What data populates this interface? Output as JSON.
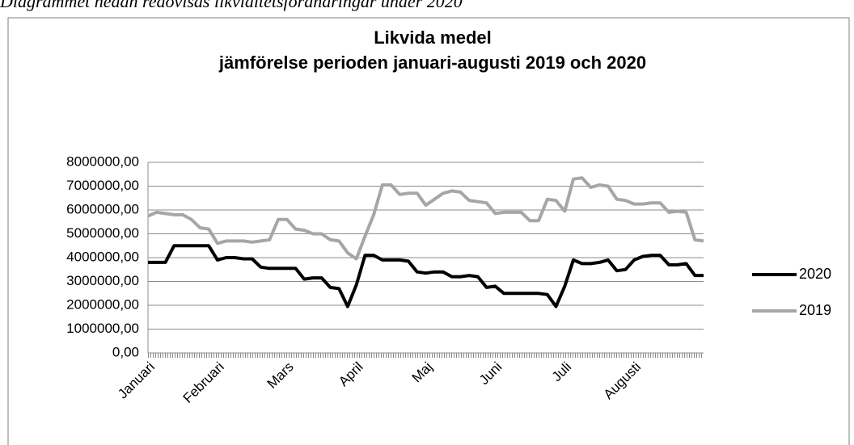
{
  "caption": "Diagrammet nedan redovisas likviditetsförändringar under 2020",
  "chart_data": {
    "type": "line",
    "title": "Likvida medel",
    "subtitle": "jämförelse perioden januari-augusti 2019 och 2020",
    "categories": [
      "Januari",
      null,
      null,
      null,
      null,
      null,
      null,
      null,
      "Februari",
      null,
      null,
      null,
      null,
      null,
      null,
      null,
      "Mars",
      null,
      null,
      null,
      null,
      null,
      null,
      null,
      "April",
      null,
      null,
      null,
      null,
      null,
      null,
      null,
      "Maj",
      null,
      null,
      null,
      null,
      null,
      null,
      null,
      "Juni",
      null,
      null,
      null,
      null,
      null,
      null,
      null,
      "Juli",
      null,
      null,
      null,
      null,
      null,
      null,
      null,
      "Augusti",
      null,
      null,
      null,
      null,
      null,
      null,
      null,
      null
    ],
    "series": [
      {
        "name": "2020",
        "color": "#000000",
        "values": [
          3800000,
          3800000,
          3800000,
          4500000,
          4500000,
          4500000,
          4500000,
          4500000,
          3900000,
          4000000,
          4000000,
          3950000,
          3950000,
          3600000,
          3550000,
          3550000,
          3550000,
          3550000,
          3100000,
          3150000,
          3150000,
          2750000,
          2700000,
          1950000,
          2850000,
          4100000,
          4100000,
          3900000,
          3900000,
          3900000,
          3850000,
          3400000,
          3350000,
          3400000,
          3400000,
          3200000,
          3200000,
          3250000,
          3200000,
          2750000,
          2800000,
          2500000,
          2500000,
          2500000,
          2500000,
          2500000,
          2450000,
          1950000,
          2800000,
          3900000,
          3750000,
          3750000,
          3800000,
          3900000,
          3450000,
          3500000,
          3900000,
          4050000,
          4100000,
          4100000,
          3700000,
          3700000,
          3750000,
          3250000,
          3250000
        ]
      },
      {
        "name": "2019",
        "color": "#a6a6a6",
        "values": [
          5750000,
          5900000,
          5850000,
          5800000,
          5800000,
          5600000,
          5250000,
          5200000,
          4600000,
          4700000,
          4700000,
          4700000,
          4650000,
          4700000,
          4750000,
          5600000,
          5600000,
          5200000,
          5150000,
          5000000,
          5000000,
          4750000,
          4700000,
          4200000,
          3950000,
          4900000,
          5800000,
          7050000,
          7050000,
          6650000,
          6700000,
          6700000,
          6200000,
          6450000,
          6700000,
          6800000,
          6750000,
          6400000,
          6350000,
          6300000,
          5850000,
          5900000,
          5900000,
          5900000,
          5550000,
          5550000,
          6450000,
          6400000,
          5950000,
          7300000,
          7350000,
          6950000,
          7050000,
          7000000,
          6450000,
          6400000,
          6250000,
          6250000,
          6300000,
          6300000,
          5900000,
          5950000,
          5900000,
          4750000,
          4700000
        ]
      }
    ],
    "ylim": [
      0,
      8000000
    ],
    "yticks": [
      {
        "value": 0,
        "label": "0,00"
      },
      {
        "value": 1000000,
        "label": "1000000,00"
      },
      {
        "value": 2000000,
        "label": "2000000,00"
      },
      {
        "value": 3000000,
        "label": "3000000,00"
      },
      {
        "value": 4000000,
        "label": "4000000,00"
      },
      {
        "value": 5000000,
        "label": "5000000,00"
      },
      {
        "value": 6000000,
        "label": "6000000,00"
      },
      {
        "value": 7000000,
        "label": "7000000,00"
      },
      {
        "value": 8000000,
        "label": "8000000,00"
      }
    ],
    "grid": true,
    "legend": "right"
  }
}
